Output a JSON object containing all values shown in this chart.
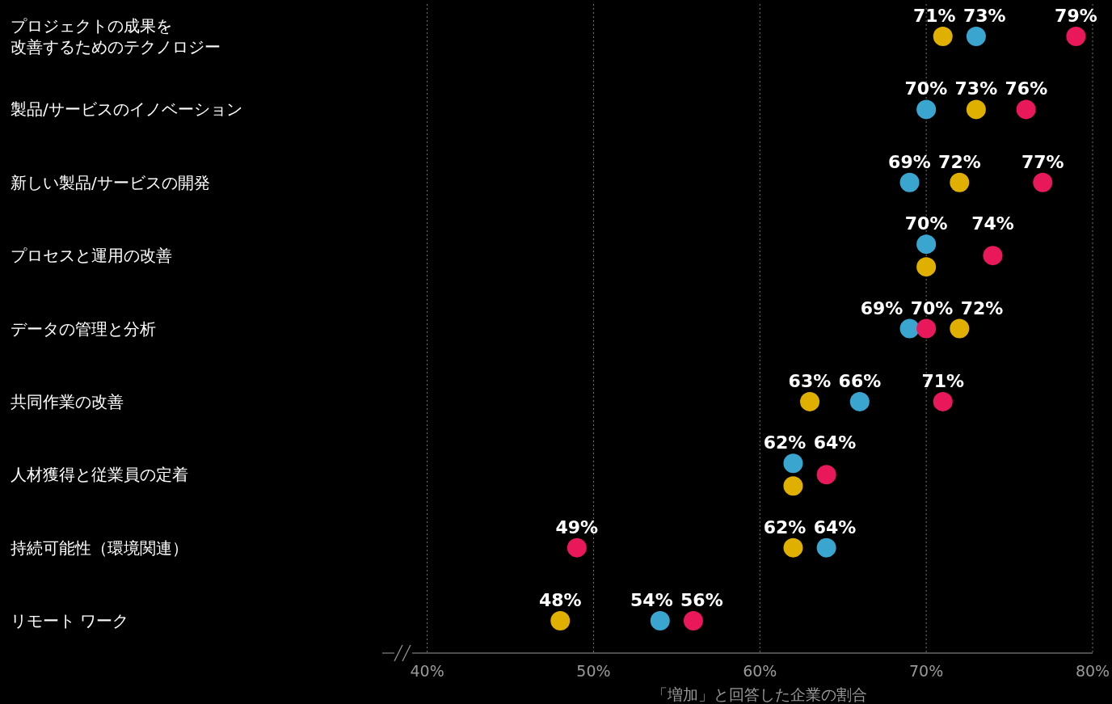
{
  "chart_data": {
    "type": "scatter",
    "orientation": "horizontal",
    "xlabel": "「増加」と回答した企業の割合",
    "categories": [
      "プロジェクトの成果を改善するためのテクノロジー",
      "製品/サービスのイノベーション",
      "新しい製品/サービスの開発",
      "プロセスと運用の改善",
      "データの管理と分析",
      "共同作業の改善",
      "人材獲得と従業員の定着",
      "持続可能性（環境関連）",
      "リモート ワーク"
    ],
    "series": [
      {
        "color": "#3aa6d0",
        "values": [
          73,
          70,
          69,
          70,
          69,
          66,
          62,
          64,
          54
        ],
        "value_labels": [
          "73%",
          "70%",
          "69%",
          "70%",
          "69%",
          "66%",
          "62%",
          "64%",
          "54%"
        ]
      },
      {
        "color": "#e0b000",
        "values": [
          71,
          73,
          72,
          70,
          72,
          63,
          62,
          62,
          48
        ],
        "value_labels": [
          "71%",
          "73%",
          "72%",
          null,
          "72%",
          "63%",
          null,
          "62%",
          "48%"
        ]
      },
      {
        "color": "#e8185a",
        "values": [
          79,
          76,
          77,
          74,
          70,
          71,
          64,
          49,
          56
        ],
        "value_labels": [
          "79%",
          "76%",
          "77%",
          "74%",
          "70%",
          "71%",
          "64%",
          "49%",
          "56%"
        ]
      }
    ],
    "xlim": [
      37.3,
      80
    ],
    "xticks": [
      {
        "value": 40,
        "label": "40%"
      },
      {
        "value": 50,
        "label": "50%"
      },
      {
        "value": 60,
        "label": "60%"
      },
      {
        "value": 70,
        "label": "70%"
      },
      {
        "value": 80,
        "label": "80%"
      }
    ],
    "grid": "x",
    "marker": "circle"
  }
}
